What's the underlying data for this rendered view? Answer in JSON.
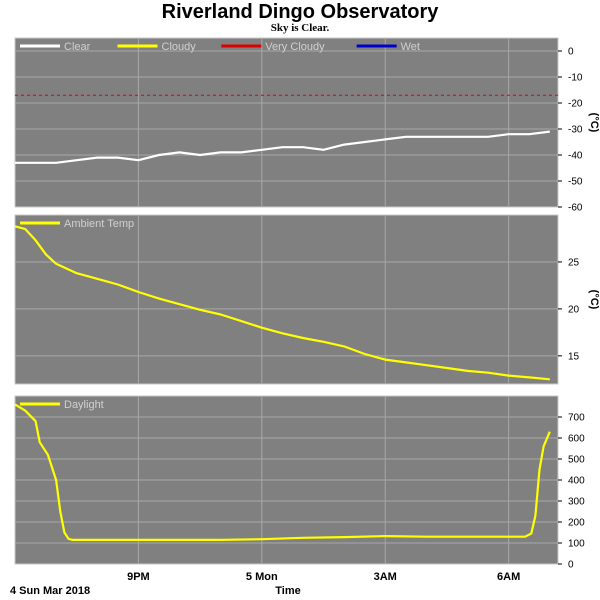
{
  "title": "Riverland Dingo Observatory",
  "subtitle": "Sky is Clear.",
  "colors": {
    "panel_bg": "#808080",
    "grid": "#a8a8a8",
    "border": "#c8c8c8",
    "clear": "#ffffff",
    "cloudy": "#ffff00",
    "very_cloudy": "#dd0000",
    "wet": "#0000cc"
  },
  "chart_data": [
    {
      "type": "line",
      "ylabel": "(°C)",
      "ylim": [
        -60,
        5
      ],
      "yticks": [
        0,
        -10,
        -20,
        -30,
        -40,
        -50,
        -60
      ],
      "grid": true,
      "legend_position": "top-left",
      "legend": [
        {
          "name": "Clear",
          "color": "#ffffff"
        },
        {
          "name": "Cloudy",
          "color": "#ffff00"
        },
        {
          "name": "Very Cloudy",
          "color": "#dd0000"
        },
        {
          "name": "Wet",
          "color": "#0000cc"
        }
      ],
      "threshold": {
        "name": "Very Cloudy",
        "value": -17,
        "style": "dashed",
        "color": "#dd0000"
      },
      "series": [
        {
          "name": "Clear",
          "color": "#ffffff",
          "x": [
            18.0,
            18.5,
            19.0,
            19.5,
            20.0,
            20.5,
            21.0,
            21.5,
            22.0,
            22.5,
            23.0,
            23.5,
            24.0,
            24.5,
            25.0,
            25.5,
            26.0,
            26.5,
            27.0,
            27.5,
            28.0,
            28.5,
            29.0,
            29.5,
            30.0,
            30.5,
            31.0
          ],
          "y": [
            -43,
            -43,
            -43,
            -42,
            -41,
            -41,
            -42,
            -40,
            -39,
            -40,
            -39,
            -39,
            -38,
            -37,
            -37,
            -38,
            -36,
            -35,
            -34,
            -33,
            -33,
            -33,
            -33,
            -33,
            -32,
            -32,
            -31
          ]
        }
      ]
    },
    {
      "type": "line",
      "ylabel": "(°C)",
      "ylim": [
        12,
        30
      ],
      "yticks": [
        15,
        20,
        25
      ],
      "grid": true,
      "legend_position": "top-left",
      "legend": [
        {
          "name": "Ambient Temp",
          "color": "#ffff00"
        }
      ],
      "series": [
        {
          "name": "Ambient Temp",
          "color": "#ffff00",
          "x": [
            18.0,
            18.25,
            18.5,
            18.75,
            19.0,
            19.5,
            20.0,
            20.5,
            21.0,
            21.5,
            22.0,
            22.5,
            23.0,
            23.5,
            24.0,
            24.5,
            25.0,
            25.5,
            26.0,
            26.5,
            27.0,
            27.5,
            28.0,
            28.5,
            29.0,
            29.5,
            30.0,
            30.5,
            31.0
          ],
          "y": [
            28.8,
            28.5,
            27.3,
            25.8,
            24.8,
            23.8,
            23.2,
            22.6,
            21.8,
            21.1,
            20.5,
            19.9,
            19.4,
            18.7,
            18.0,
            17.4,
            16.9,
            16.5,
            16.0,
            15.2,
            14.6,
            14.3,
            14.0,
            13.7,
            13.4,
            13.2,
            12.9,
            12.7,
            12.5
          ]
        }
      ]
    },
    {
      "type": "line",
      "ylim": [
        0,
        800
      ],
      "yticks": [
        0,
        100,
        200,
        300,
        400,
        500,
        600,
        700
      ],
      "grid": true,
      "legend_position": "top-left",
      "legend": [
        {
          "name": "Daylight",
          "color": "#ffff00"
        }
      ],
      "xtick_labels": [
        {
          "label": "9PM",
          "x": 21
        },
        {
          "label": "5 Mon",
          "x": 24
        },
        {
          "label": "3AM",
          "x": 27
        },
        {
          "label": "6AM",
          "x": 30
        }
      ],
      "xlabel": "Time",
      "start_label": "4 Sun Mar 2018",
      "series": [
        {
          "name": "Daylight",
          "color": "#ffff00",
          "x": [
            18.0,
            18.25,
            18.5,
            18.6,
            18.8,
            19.0,
            19.1,
            19.2,
            19.3,
            19.4,
            19.5,
            20.0,
            21.0,
            22.0,
            23.0,
            24.0,
            25.0,
            26.0,
            27.0,
            28.0,
            29.0,
            30.0,
            30.4,
            30.55,
            30.65,
            30.75,
            30.85,
            31.0
          ],
          "y": [
            760,
            730,
            680,
            580,
            520,
            400,
            250,
            150,
            120,
            115,
            115,
            115,
            115,
            115,
            115,
            118,
            125,
            128,
            133,
            130,
            130,
            130,
            130,
            145,
            230,
            450,
            560,
            630
          ]
        }
      ]
    }
  ]
}
